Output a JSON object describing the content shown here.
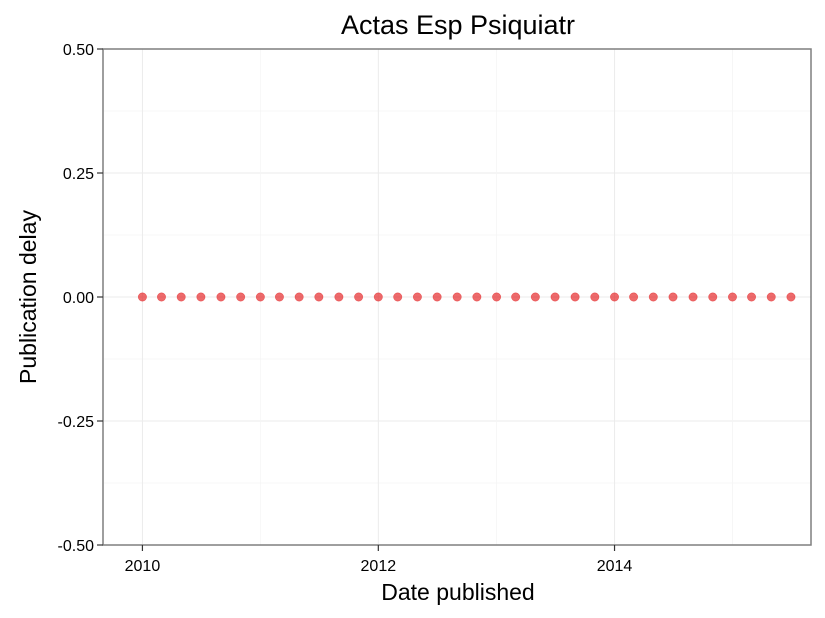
{
  "chart_data": {
    "type": "scatter",
    "title": "Actas Esp Psiquiatr",
    "xlabel": "Date published",
    "ylabel": "Publication delay",
    "x_axis_type": "date",
    "xlim": [
      "2009-09-01",
      "2015-09-01"
    ],
    "ylim": [
      -0.5,
      0.5
    ],
    "x_ticks": [
      {
        "value": "2010-01-01",
        "label": "2010"
      },
      {
        "value": "2012-01-01",
        "label": "2012"
      },
      {
        "value": "2014-01-01",
        "label": "2014"
      }
    ],
    "y_ticks": [
      {
        "value": 0.5,
        "label": "0.50"
      },
      {
        "value": 0.25,
        "label": "0.25"
      },
      {
        "value": 0.0,
        "label": "0.00"
      },
      {
        "value": -0.25,
        "label": "-0.25"
      },
      {
        "value": -0.5,
        "label": "-0.50"
      }
    ],
    "grid": true,
    "point_color": "#e31a1c",
    "points": [
      {
        "x": "2010-01-01",
        "y": 0
      },
      {
        "x": "2010-03-01",
        "y": 0
      },
      {
        "x": "2010-05-01",
        "y": 0
      },
      {
        "x": "2010-07-01",
        "y": 0
      },
      {
        "x": "2010-09-01",
        "y": 0
      },
      {
        "x": "2010-11-01",
        "y": 0
      },
      {
        "x": "2011-01-01",
        "y": 0
      },
      {
        "x": "2011-03-01",
        "y": 0
      },
      {
        "x": "2011-05-01",
        "y": 0
      },
      {
        "x": "2011-07-01",
        "y": 0
      },
      {
        "x": "2011-09-01",
        "y": 0
      },
      {
        "x": "2011-11-01",
        "y": 0
      },
      {
        "x": "2012-01-01",
        "y": 0
      },
      {
        "x": "2012-03-01",
        "y": 0
      },
      {
        "x": "2012-05-01",
        "y": 0
      },
      {
        "x": "2012-07-01",
        "y": 0
      },
      {
        "x": "2012-09-01",
        "y": 0
      },
      {
        "x": "2012-11-01",
        "y": 0
      },
      {
        "x": "2013-01-01",
        "y": 0
      },
      {
        "x": "2013-03-01",
        "y": 0
      },
      {
        "x": "2013-05-01",
        "y": 0
      },
      {
        "x": "2013-07-01",
        "y": 0
      },
      {
        "x": "2013-09-01",
        "y": 0
      },
      {
        "x": "2013-11-01",
        "y": 0
      },
      {
        "x": "2014-01-01",
        "y": 0
      },
      {
        "x": "2014-03-01",
        "y": 0
      },
      {
        "x": "2014-05-01",
        "y": 0
      },
      {
        "x": "2014-07-01",
        "y": 0
      },
      {
        "x": "2014-09-01",
        "y": 0
      },
      {
        "x": "2014-11-01",
        "y": 0
      },
      {
        "x": "2015-01-01",
        "y": 0
      },
      {
        "x": "2015-03-01",
        "y": 0
      },
      {
        "x": "2015-05-01",
        "y": 0
      },
      {
        "x": "2015-07-01",
        "y": 0
      }
    ]
  }
}
